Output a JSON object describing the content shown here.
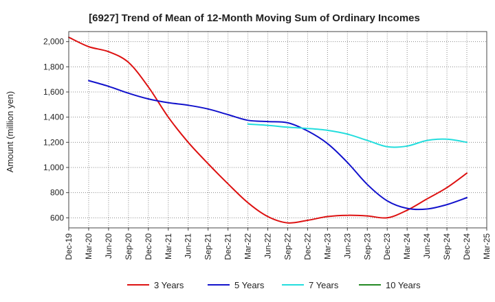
{
  "chart_data": {
    "type": "line",
    "title": "[6927]  Trend of Mean of 12-Month Moving Sum of Ordinary Incomes",
    "xlabel": "",
    "ylabel": "Amount (million yen)",
    "ylim": [
      520,
      2080
    ],
    "yticks": [
      600,
      800,
      1000,
      1200,
      1400,
      1600,
      1800,
      2000
    ],
    "ytick_labels": [
      "600",
      "800",
      "1,000",
      "1,200",
      "1,400",
      "1,600",
      "1,800",
      "2,000"
    ],
    "xtick_labels": [
      "Dec-19",
      "Mar-20",
      "Jun-20",
      "Sep-20",
      "Dec-20",
      "Mar-21",
      "Jun-21",
      "Sep-21",
      "Dec-21",
      "Mar-22",
      "Jun-22",
      "Sep-22",
      "Dec-22",
      "Mar-23",
      "Jun-23",
      "Sep-23",
      "Dec-23",
      "Mar-24",
      "Jun-24",
      "Sep-24",
      "Dec-24",
      "Mar-25"
    ],
    "grid": true,
    "legend_position": "bottom",
    "series": [
      {
        "name": "3 Years",
        "color": "#dd1111",
        "points": [
          [
            0,
            2035
          ],
          [
            1,
            1960
          ],
          [
            2,
            1920
          ],
          [
            3,
            1835
          ],
          [
            4,
            1640
          ],
          [
            5,
            1400
          ],
          [
            6,
            1200
          ],
          [
            7,
            1030
          ],
          [
            8,
            870
          ],
          [
            9,
            720
          ],
          [
            10,
            610
          ],
          [
            11,
            560
          ],
          [
            12,
            580
          ],
          [
            13,
            610
          ],
          [
            14,
            620
          ],
          [
            15,
            615
          ],
          [
            16,
            600
          ],
          [
            17,
            660
          ],
          [
            18,
            750
          ],
          [
            19,
            840
          ],
          [
            20,
            955
          ]
        ]
      },
      {
        "name": "5 Years",
        "color": "#1111cc",
        "points": [
          [
            1,
            1690
          ],
          [
            2,
            1645
          ],
          [
            3,
            1590
          ],
          [
            4,
            1545
          ],
          [
            5,
            1515
          ],
          [
            6,
            1495
          ],
          [
            7,
            1465
          ],
          [
            8,
            1420
          ],
          [
            9,
            1375
          ],
          [
            10,
            1365
          ],
          [
            11,
            1355
          ],
          [
            12,
            1290
          ],
          [
            13,
            1190
          ],
          [
            14,
            1040
          ],
          [
            15,
            865
          ],
          [
            16,
            735
          ],
          [
            17,
            675
          ],
          [
            18,
            670
          ],
          [
            19,
            705
          ],
          [
            20,
            760
          ]
        ]
      },
      {
        "name": "7 Years",
        "color": "#22dddd",
        "points": [
          [
            9,
            1345
          ],
          [
            10,
            1335
          ],
          [
            11,
            1320
          ],
          [
            12,
            1310
          ],
          [
            13,
            1295
          ],
          [
            14,
            1265
          ],
          [
            15,
            1215
          ],
          [
            16,
            1165
          ],
          [
            17,
            1170
          ],
          [
            18,
            1215
          ],
          [
            19,
            1225
          ],
          [
            20,
            1200
          ]
        ]
      },
      {
        "name": "10 Years",
        "color": "#228822",
        "points": []
      }
    ]
  }
}
